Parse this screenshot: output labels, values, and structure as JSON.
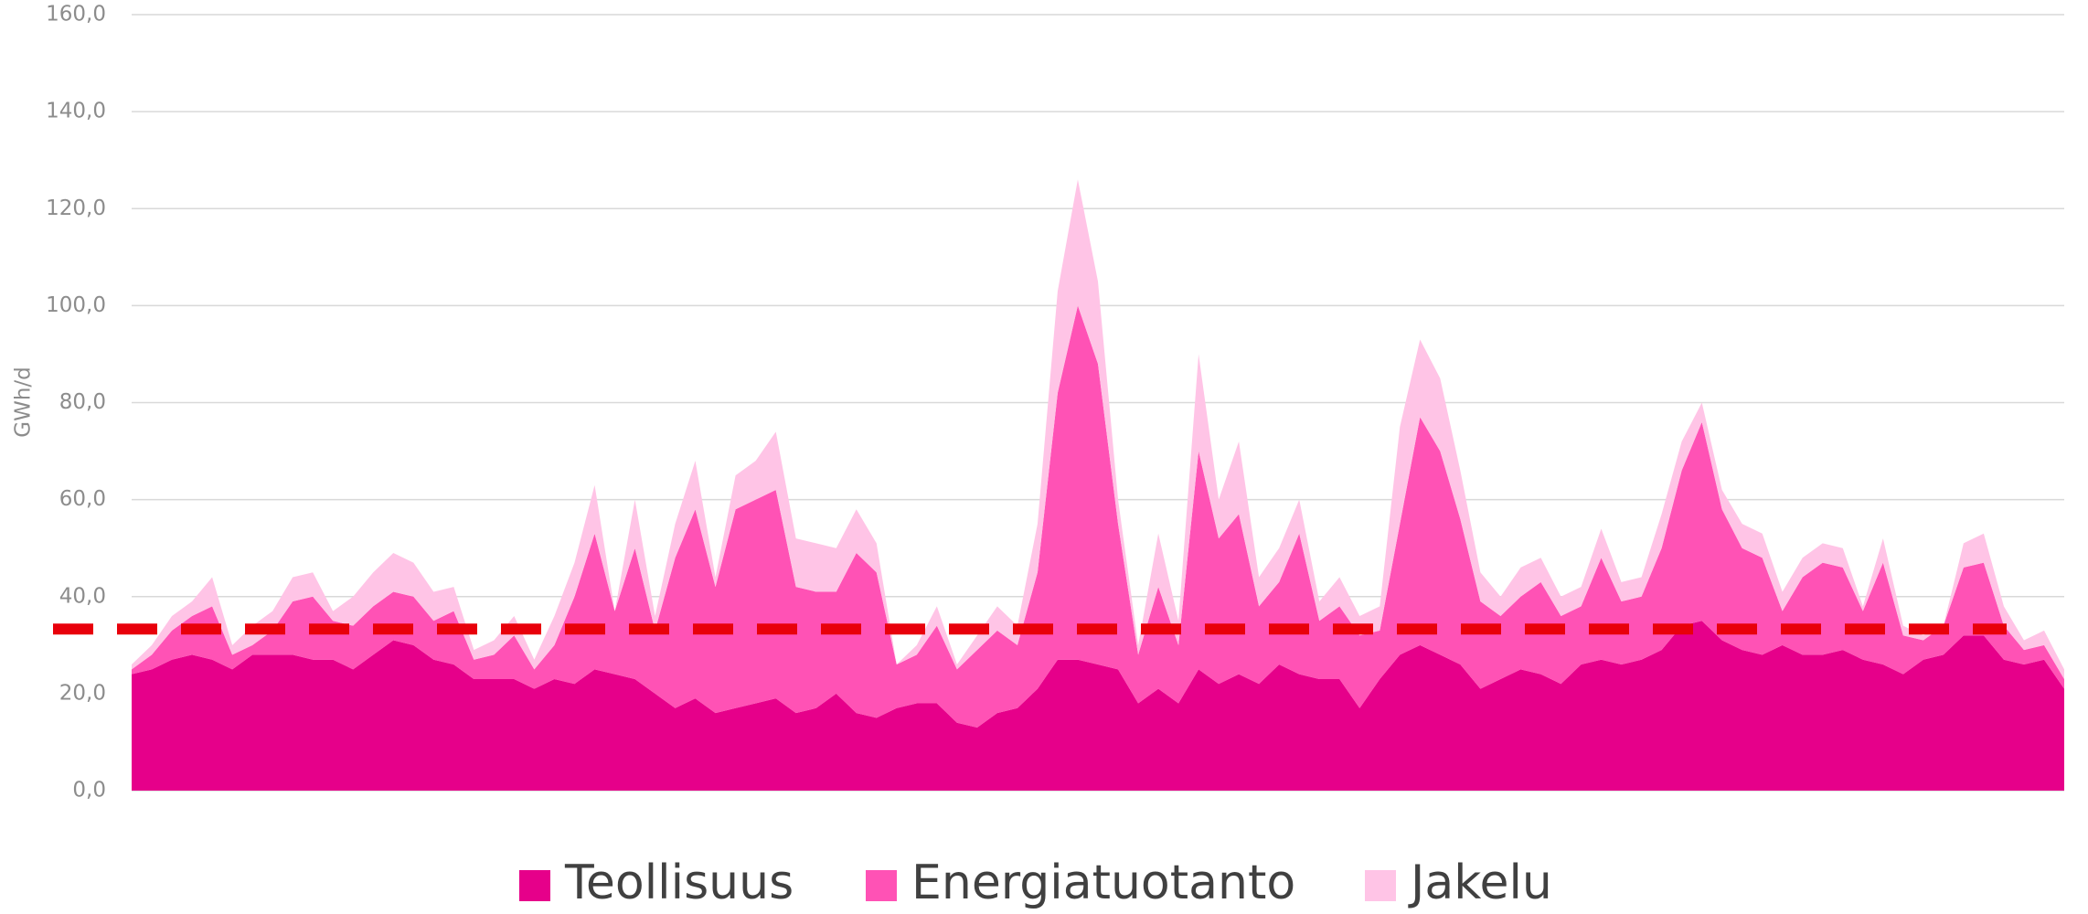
{
  "chart_data": {
    "type": "stacked_area",
    "y_label": "GWh/d",
    "ylim": [
      0,
      160
    ],
    "yticks": [
      {
        "value": 0,
        "label": "0,0"
      },
      {
        "value": 20,
        "label": "20,0"
      },
      {
        "value": 40,
        "label": "40,0"
      },
      {
        "value": 60,
        "label": "60,0"
      },
      {
        "value": 80,
        "label": "80,0"
      },
      {
        "value": 100,
        "label": "100,0"
      },
      {
        "value": 120,
        "label": "120,0"
      },
      {
        "value": 140,
        "label": "140,0"
      },
      {
        "value": 160,
        "label": "160,0"
      }
    ],
    "grid": true,
    "legend": "bottom",
    "reference_line": {
      "value": 33.3,
      "color": "#e8000b"
    },
    "series": [
      {
        "name": "Teollisuus",
        "color": "#e6008a",
        "values": [
          24,
          25,
          27,
          28,
          27,
          25,
          28,
          28,
          28,
          27,
          27,
          25,
          28,
          31,
          30,
          27,
          26,
          23,
          23,
          23,
          21,
          23,
          22,
          25,
          24,
          23,
          20,
          17,
          19,
          16,
          17,
          18,
          19,
          16,
          17,
          20,
          16,
          15,
          17,
          18,
          18,
          14,
          13,
          16,
          17,
          21,
          27,
          27,
          26,
          25,
          18,
          21,
          18,
          25,
          22,
          24,
          22,
          26,
          24,
          23,
          23,
          17,
          23,
          28,
          30,
          28,
          26,
          21,
          23,
          25,
          24,
          22,
          26,
          27,
          26,
          27,
          29,
          34,
          35,
          31,
          29,
          28,
          30,
          28,
          28,
          29,
          27,
          26,
          24,
          27,
          28,
          32,
          32,
          27,
          26,
          27,
          21
        ]
      },
      {
        "name": "Energiatuotanto",
        "color": "#ff52b5",
        "values": [
          1,
          3,
          6,
          8,
          11,
          3,
          2,
          5,
          11,
          13,
          8,
          9,
          10,
          10,
          10,
          8,
          11,
          4,
          5,
          9,
          4,
          7,
          18,
          28,
          13,
          27,
          13,
          31,
          39,
          26,
          41,
          42,
          43,
          26,
          24,
          21,
          33,
          30,
          9,
          10,
          16,
          11,
          16,
          17,
          13,
          24,
          55,
          73,
          62,
          30,
          10,
          21,
          12,
          45,
          30,
          33,
          16,
          17,
          29,
          12,
          15,
          15,
          10,
          27,
          47,
          42,
          30,
          18,
          13,
          15,
          19,
          14,
          12,
          21,
          13,
          13,
          21,
          32,
          41,
          27,
          21,
          20,
          7,
          16,
          19,
          17,
          10,
          21,
          8,
          4,
          6,
          14,
          15,
          7,
          3,
          3,
          2
        ]
      },
      {
        "name": "Jakelu",
        "color": "#ffc4e6",
        "values": [
          1,
          2,
          3,
          3,
          6,
          2,
          4,
          4,
          5,
          5,
          2,
          6,
          7,
          8,
          7,
          6,
          5,
          2,
          3,
          4,
          2,
          6,
          7,
          10,
          0,
          10,
          3,
          7,
          10,
          2,
          7,
          8,
          12,
          10,
          10,
          9,
          9,
          6,
          0,
          2,
          4,
          1,
          3,
          5,
          4,
          10,
          21,
          26,
          17,
          5,
          2,
          11,
          5,
          20,
          8,
          15,
          6,
          7,
          7,
          4,
          6,
          4,
          5,
          20,
          16,
          15,
          10,
          6,
          4,
          6,
          5,
          4,
          4,
          6,
          4,
          4,
          7,
          6,
          4,
          4,
          5,
          5,
          4,
          4,
          4,
          4,
          1,
          5,
          2,
          1,
          0,
          5,
          6,
          4,
          2,
          3,
          2
        ]
      }
    ]
  }
}
